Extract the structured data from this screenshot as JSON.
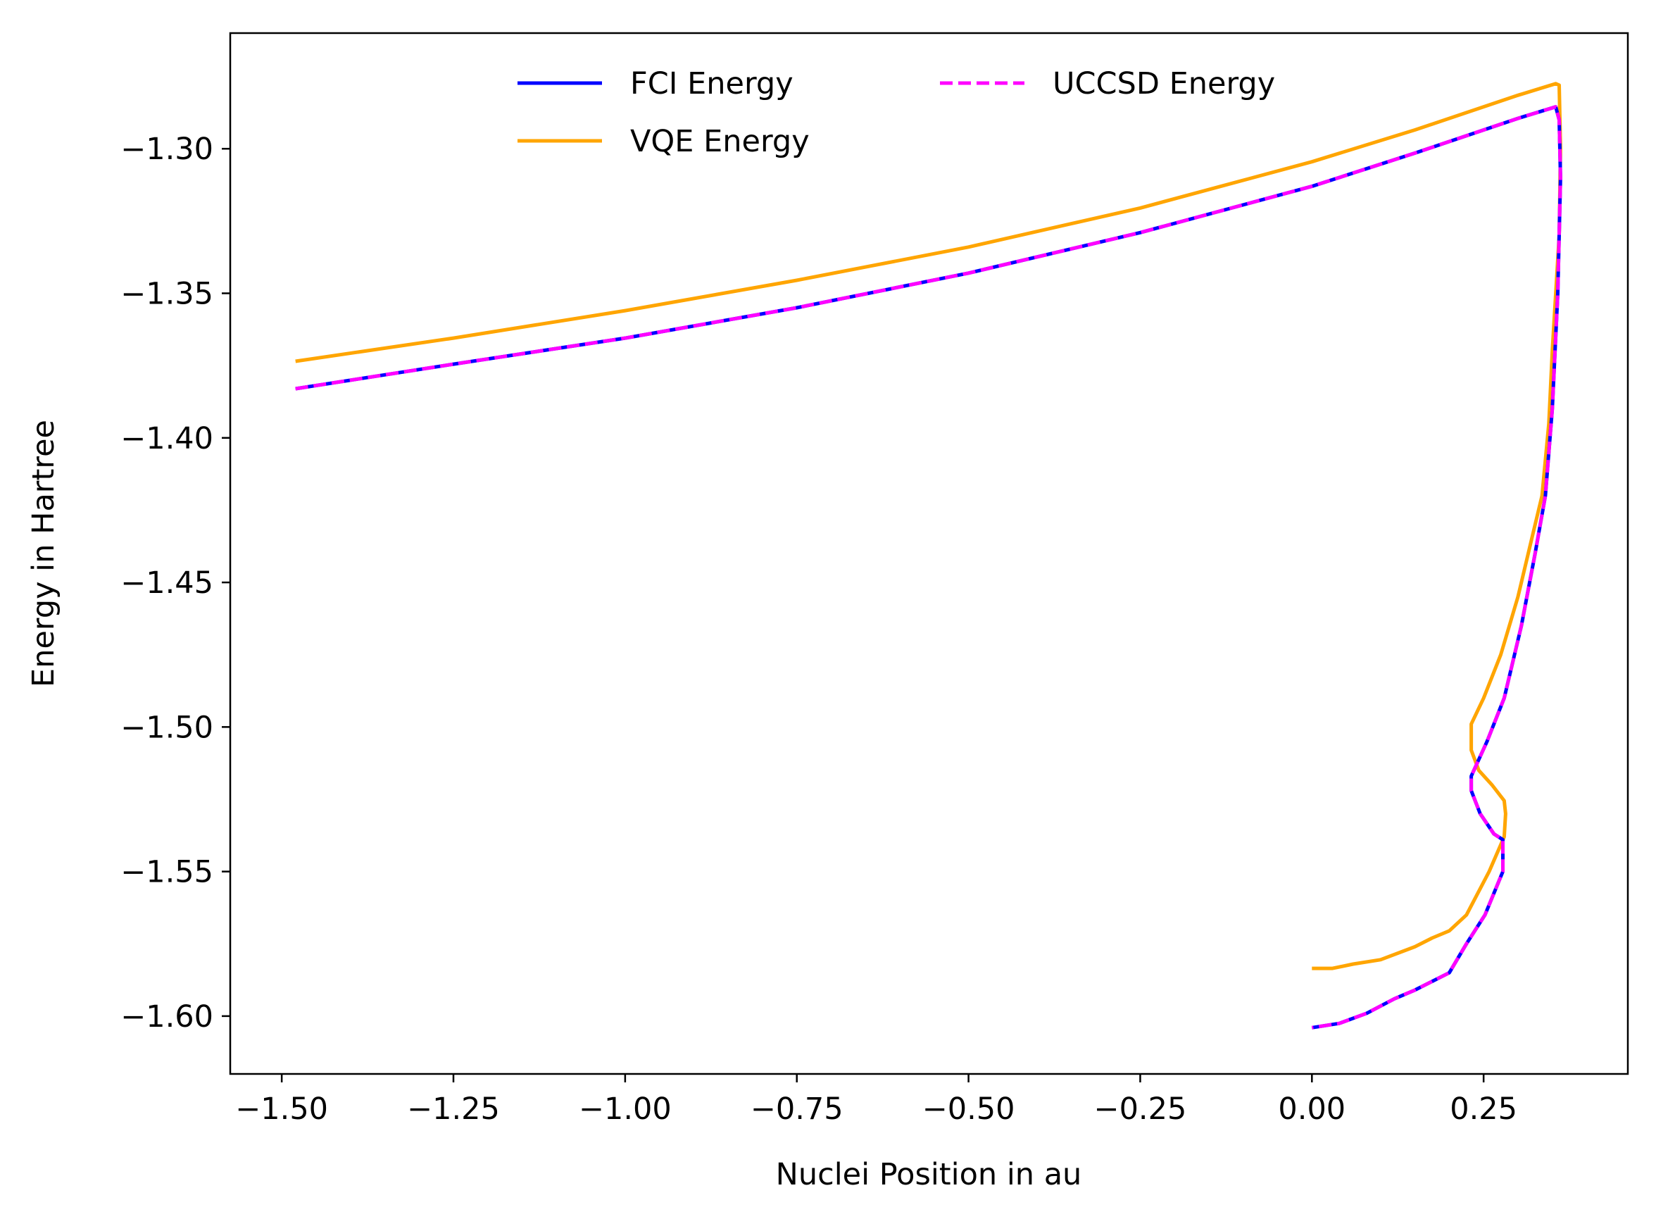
{
  "chart_data": {
    "type": "line",
    "title": "",
    "xlabel": "Nuclei Position in au",
    "ylabel": "Energy in Hartree",
    "xlim": [
      -1.575,
      0.46
    ],
    "ylim": [
      -1.62,
      -1.26
    ],
    "x_ticks": [
      -1.5,
      -1.25,
      -1.0,
      -0.75,
      -0.5,
      -0.25,
      0.0,
      0.25
    ],
    "x_tick_labels": [
      "−1.50",
      "−1.25",
      "−1.00",
      "−0.75",
      "−0.50",
      "−0.25",
      "0.00",
      "0.25"
    ],
    "y_ticks": [
      -1.3,
      -1.35,
      -1.4,
      -1.45,
      -1.5,
      -1.55,
      -1.6
    ],
    "y_tick_labels": [
      "−1.30",
      "−1.35",
      "−1.40",
      "−1.45",
      "−1.50",
      "−1.55",
      "−1.60"
    ],
    "grid": false,
    "legend_position": "top-center",
    "legend_columns": 2,
    "series": [
      {
        "name": "FCI Energy",
        "color": "#0000ff",
        "style": "solid",
        "points": [
          [
            -1.48,
            -1.383
          ],
          [
            -1.25,
            -1.3745
          ],
          [
            -1.0,
            -1.3655
          ],
          [
            -0.75,
            -1.355
          ],
          [
            -0.5,
            -1.343
          ],
          [
            -0.25,
            -1.329
          ],
          [
            0.0,
            -1.313
          ],
          [
            0.15,
            -1.3015
          ],
          [
            0.3,
            -1.2895
          ],
          [
            0.355,
            -1.2855
          ],
          [
            0.36,
            -1.29
          ],
          [
            0.362,
            -1.31
          ],
          [
            0.358,
            -1.35
          ],
          [
            0.35,
            -1.39
          ],
          [
            0.34,
            -1.42
          ],
          [
            0.325,
            -1.44
          ],
          [
            0.305,
            -1.465
          ],
          [
            0.28,
            -1.49
          ],
          [
            0.255,
            -1.505
          ],
          [
            0.232,
            -1.517
          ],
          [
            0.232,
            -1.522
          ],
          [
            0.245,
            -1.53
          ],
          [
            0.265,
            -1.537
          ],
          [
            0.278,
            -1.539
          ],
          [
            0.278,
            -1.55
          ],
          [
            0.252,
            -1.565
          ],
          [
            0.225,
            -1.575
          ],
          [
            0.2,
            -1.585
          ],
          [
            0.175,
            -1.588
          ],
          [
            0.15,
            -1.591
          ],
          [
            0.12,
            -1.594
          ],
          [
            0.08,
            -1.599
          ],
          [
            0.04,
            -1.6025
          ],
          [
            0.0,
            -1.604
          ]
        ]
      },
      {
        "name": "VQE Energy",
        "color": "#ffa500",
        "style": "solid",
        "points": [
          [
            -1.48,
            -1.3735
          ],
          [
            -1.25,
            -1.3655
          ],
          [
            -1.0,
            -1.356
          ],
          [
            -0.75,
            -1.3455
          ],
          [
            -0.5,
            -1.334
          ],
          [
            -0.25,
            -1.3205
          ],
          [
            0.0,
            -1.3045
          ],
          [
            0.15,
            -1.2935
          ],
          [
            0.3,
            -1.2815
          ],
          [
            0.355,
            -1.2775
          ],
          [
            0.36,
            -1.278
          ],
          [
            0.362,
            -1.3
          ],
          [
            0.36,
            -1.33
          ],
          [
            0.35,
            -1.37
          ],
          [
            0.345,
            -1.395
          ],
          [
            0.335,
            -1.42
          ],
          [
            0.32,
            -1.435
          ],
          [
            0.3,
            -1.455
          ],
          [
            0.275,
            -1.475
          ],
          [
            0.25,
            -1.49
          ],
          [
            0.232,
            -1.499
          ],
          [
            0.232,
            -1.508
          ],
          [
            0.243,
            -1.515
          ],
          [
            0.262,
            -1.52
          ],
          [
            0.28,
            -1.5255
          ],
          [
            0.282,
            -1.53
          ],
          [
            0.28,
            -1.538
          ],
          [
            0.258,
            -1.55
          ],
          [
            0.225,
            -1.565
          ],
          [
            0.2,
            -1.5705
          ],
          [
            0.175,
            -1.573
          ],
          [
            0.15,
            -1.576
          ],
          [
            0.1,
            -1.5805
          ],
          [
            0.06,
            -1.582
          ],
          [
            0.03,
            -1.5835
          ],
          [
            0.0,
            -1.5835
          ]
        ]
      },
      {
        "name": "UCCSD Energy",
        "color": "#ff00ff",
        "style": "dashed",
        "points": [
          [
            -1.48,
            -1.383
          ],
          [
            -1.25,
            -1.3745
          ],
          [
            -1.0,
            -1.3655
          ],
          [
            -0.75,
            -1.355
          ],
          [
            -0.5,
            -1.343
          ],
          [
            -0.25,
            -1.329
          ],
          [
            0.0,
            -1.313
          ],
          [
            0.15,
            -1.3015
          ],
          [
            0.3,
            -1.2895
          ],
          [
            0.355,
            -1.2855
          ],
          [
            0.36,
            -1.29
          ],
          [
            0.362,
            -1.31
          ],
          [
            0.358,
            -1.35
          ],
          [
            0.35,
            -1.39
          ],
          [
            0.34,
            -1.42
          ],
          [
            0.325,
            -1.44
          ],
          [
            0.305,
            -1.465
          ],
          [
            0.28,
            -1.49
          ],
          [
            0.255,
            -1.505
          ],
          [
            0.232,
            -1.517
          ],
          [
            0.232,
            -1.522
          ],
          [
            0.245,
            -1.53
          ],
          [
            0.265,
            -1.537
          ],
          [
            0.278,
            -1.539
          ],
          [
            0.278,
            -1.55
          ],
          [
            0.252,
            -1.565
          ],
          [
            0.225,
            -1.575
          ],
          [
            0.2,
            -1.585
          ],
          [
            0.175,
            -1.588
          ],
          [
            0.15,
            -1.591
          ],
          [
            0.12,
            -1.594
          ],
          [
            0.08,
            -1.599
          ],
          [
            0.04,
            -1.6025
          ],
          [
            0.0,
            -1.604
          ]
        ]
      }
    ]
  }
}
